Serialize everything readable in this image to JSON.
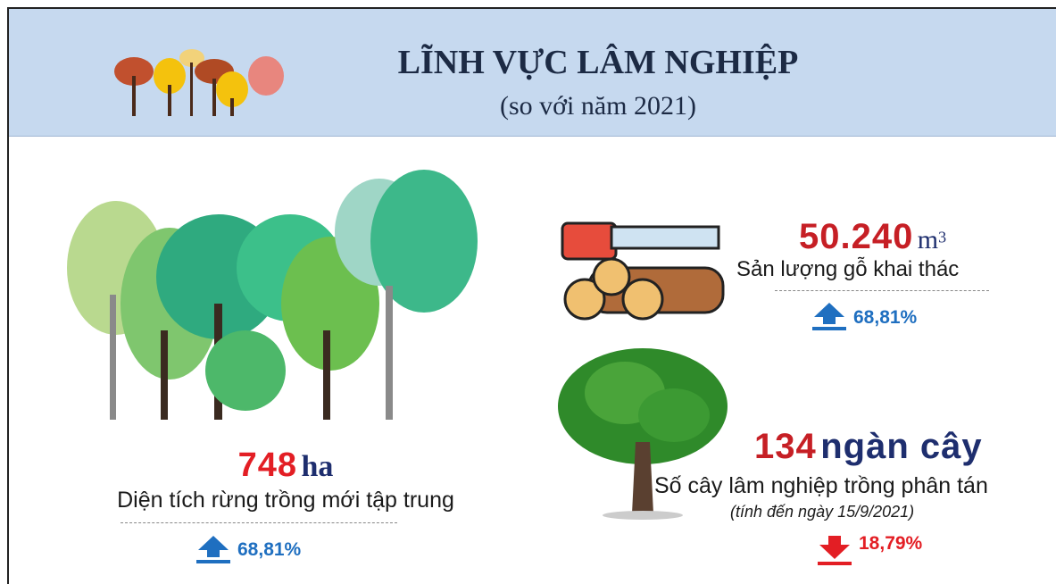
{
  "header": {
    "title": "LĨNH VỰC LÂM NGHIỆP",
    "subtitle": "(so với năm 2021)"
  },
  "items": [
    {
      "value": "748",
      "unit": "ha",
      "label": "Diện tích rừng trồng mới tập trung",
      "change": "68,81%"
    },
    {
      "value": "50.240",
      "unit": "m",
      "unit_power": "3",
      "label": "Sản lượng gỗ khai thác",
      "change": "68,81%"
    },
    {
      "value": "134",
      "unit": "ngàn cây",
      "label": "Số cây lâm nghiệp trồng phân tán",
      "note": "(tính đến ngày 15/9/2021)",
      "change": "18,79%"
    }
  ]
}
